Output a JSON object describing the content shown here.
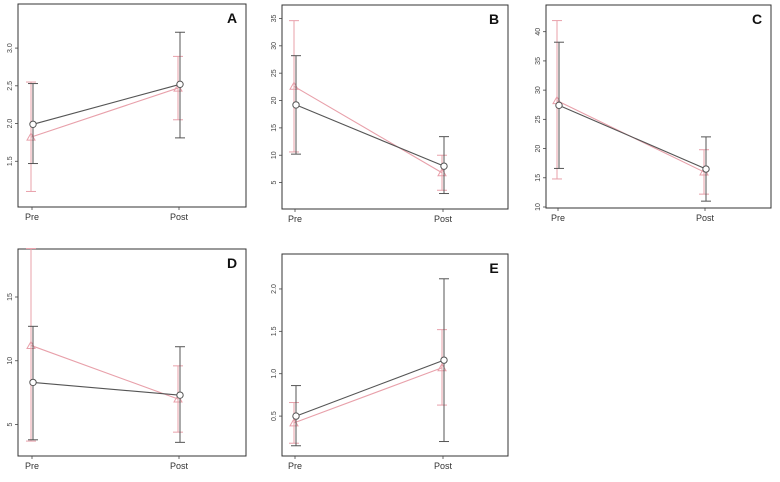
{
  "chart_data": [
    {
      "type": "line",
      "panel": "A",
      "categories": [
        "Pre",
        "Post"
      ],
      "ylim": [
        1.0,
        3.2
      ],
      "yticks": [
        "1.5",
        "2.0",
        "2.5",
        "3.0"
      ],
      "series": [
        {
          "marker": "circle",
          "color": "#555555",
          "values": [
            1.99,
            2.52
          ],
          "err_low": [
            1.47,
            1.81
          ],
          "err_high": [
            2.53,
            3.21
          ]
        },
        {
          "marker": "triangle",
          "color": "#e8a0aa",
          "values": [
            1.82,
            2.47
          ],
          "err_low": [
            1.1,
            2.05
          ],
          "err_high": [
            2.55,
            2.89
          ]
        }
      ]
    },
    {
      "type": "line",
      "panel": "B",
      "categories": [
        "Pre",
        "Post"
      ],
      "ylim": [
        2,
        36
      ],
      "yticks": [
        "5",
        "10",
        "15",
        "20",
        "25",
        "30",
        "35"
      ],
      "series": [
        {
          "marker": "circle",
          "color": "#555555",
          "values": [
            19.2,
            8.0
          ],
          "err_low": [
            10.2,
            3.0
          ],
          "err_high": [
            28.2,
            13.4
          ]
        },
        {
          "marker": "triangle",
          "color": "#e8a0aa",
          "values": [
            22.6,
            6.8
          ],
          "err_low": [
            10.6,
            3.6
          ],
          "err_high": [
            34.6,
            10.0
          ]
        }
      ]
    },
    {
      "type": "line",
      "panel": "C",
      "categories": [
        "Pre",
        "Post"
      ],
      "ylim": [
        10,
        42
      ],
      "yticks": [
        "10",
        "15",
        "20",
        "25",
        "30",
        "35",
        "40"
      ],
      "series": [
        {
          "marker": "circle",
          "color": "#555555",
          "values": [
            27.4,
            16.5
          ],
          "err_low": [
            16.6,
            11.0
          ],
          "err_high": [
            38.2,
            22.0
          ]
        },
        {
          "marker": "triangle",
          "color": "#e8a0aa",
          "values": [
            28.2,
            16.0
          ],
          "err_low": [
            14.8,
            12.2
          ],
          "err_high": [
            41.9,
            19.8
          ]
        }
      ]
    },
    {
      "type": "line",
      "panel": "D",
      "categories": [
        "Pre",
        "Post"
      ],
      "ylim": [
        3,
        19
      ],
      "yticks": [
        "5",
        "10",
        "15"
      ],
      "series": [
        {
          "marker": "circle",
          "color": "#555555",
          "values": [
            8.3,
            7.3
          ],
          "err_low": [
            3.8,
            3.6
          ],
          "err_high": [
            12.7,
            11.1
          ]
        },
        {
          "marker": "triangle",
          "color": "#e8a0aa",
          "values": [
            11.2,
            7.0
          ],
          "err_low": [
            3.7,
            4.4
          ],
          "err_high": [
            18.8,
            9.6
          ]
        }
      ]
    },
    {
      "type": "line",
      "panel": "E",
      "categories": [
        "Pre",
        "Post"
      ],
      "ylim": [
        0.1,
        2.2
      ],
      "yticks": [
        "0.5",
        "1.0",
        "1.5",
        "2.0"
      ],
      "series": [
        {
          "marker": "circle",
          "color": "#555555",
          "values": [
            0.5,
            1.16
          ],
          "err_low": [
            0.15,
            0.2
          ],
          "err_high": [
            0.86,
            2.12
          ]
        },
        {
          "marker": "triangle",
          "color": "#e8a0aa",
          "values": [
            0.42,
            1.07
          ],
          "err_low": [
            0.18,
            0.63
          ],
          "err_high": [
            0.66,
            1.52
          ]
        }
      ]
    }
  ]
}
